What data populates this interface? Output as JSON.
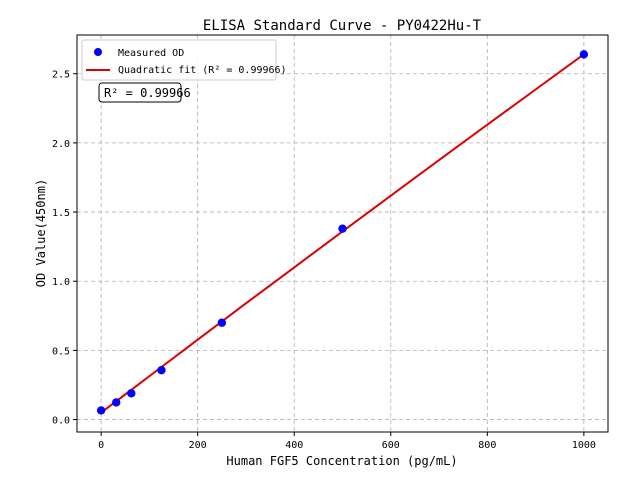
{
  "chart_data": {
    "type": "scatter",
    "title": "ELISA Standard Curve - PY0422Hu-T",
    "xlabel": "Human FGF5 Concentration (pg/mL)",
    "ylabel": "OD Value(450nm)",
    "xlim": [
      -50,
      1050
    ],
    "ylim": [
      -0.09,
      2.78
    ],
    "xticks": [
      0,
      200,
      400,
      600,
      800,
      1000
    ],
    "xtick_labels": [
      "0",
      "200",
      "400",
      "600",
      "800",
      "1000"
    ],
    "yticks": [
      0.0,
      0.5,
      1.0,
      1.5,
      2.0,
      2.5
    ],
    "ytick_labels": [
      "0.0",
      "0.5",
      "1.0",
      "1.5",
      "2.0",
      "2.5"
    ],
    "grid": true,
    "legend_position": "top-left",
    "series": [
      {
        "name": "Measured OD",
        "kind": "scatter",
        "color": "#0000ff",
        "x": [
          0,
          31.25,
          62.5,
          125,
          250,
          500,
          1000
        ],
        "y": [
          0.066,
          0.124,
          0.19,
          0.357,
          0.7,
          1.38,
          2.64
        ]
      },
      {
        "name": "Quadratic fit (R² = 0.99966)",
        "kind": "line",
        "color": "#dd0000",
        "x": [
          0,
          100,
          200,
          300,
          400,
          500,
          600,
          700,
          800,
          900,
          1000
        ],
        "y": [
          0.05,
          0.314,
          0.577,
          0.84,
          1.1,
          1.36,
          1.618,
          1.876,
          2.132,
          2.386,
          2.64
        ]
      }
    ],
    "annotation": "R² = 0.99966"
  }
}
